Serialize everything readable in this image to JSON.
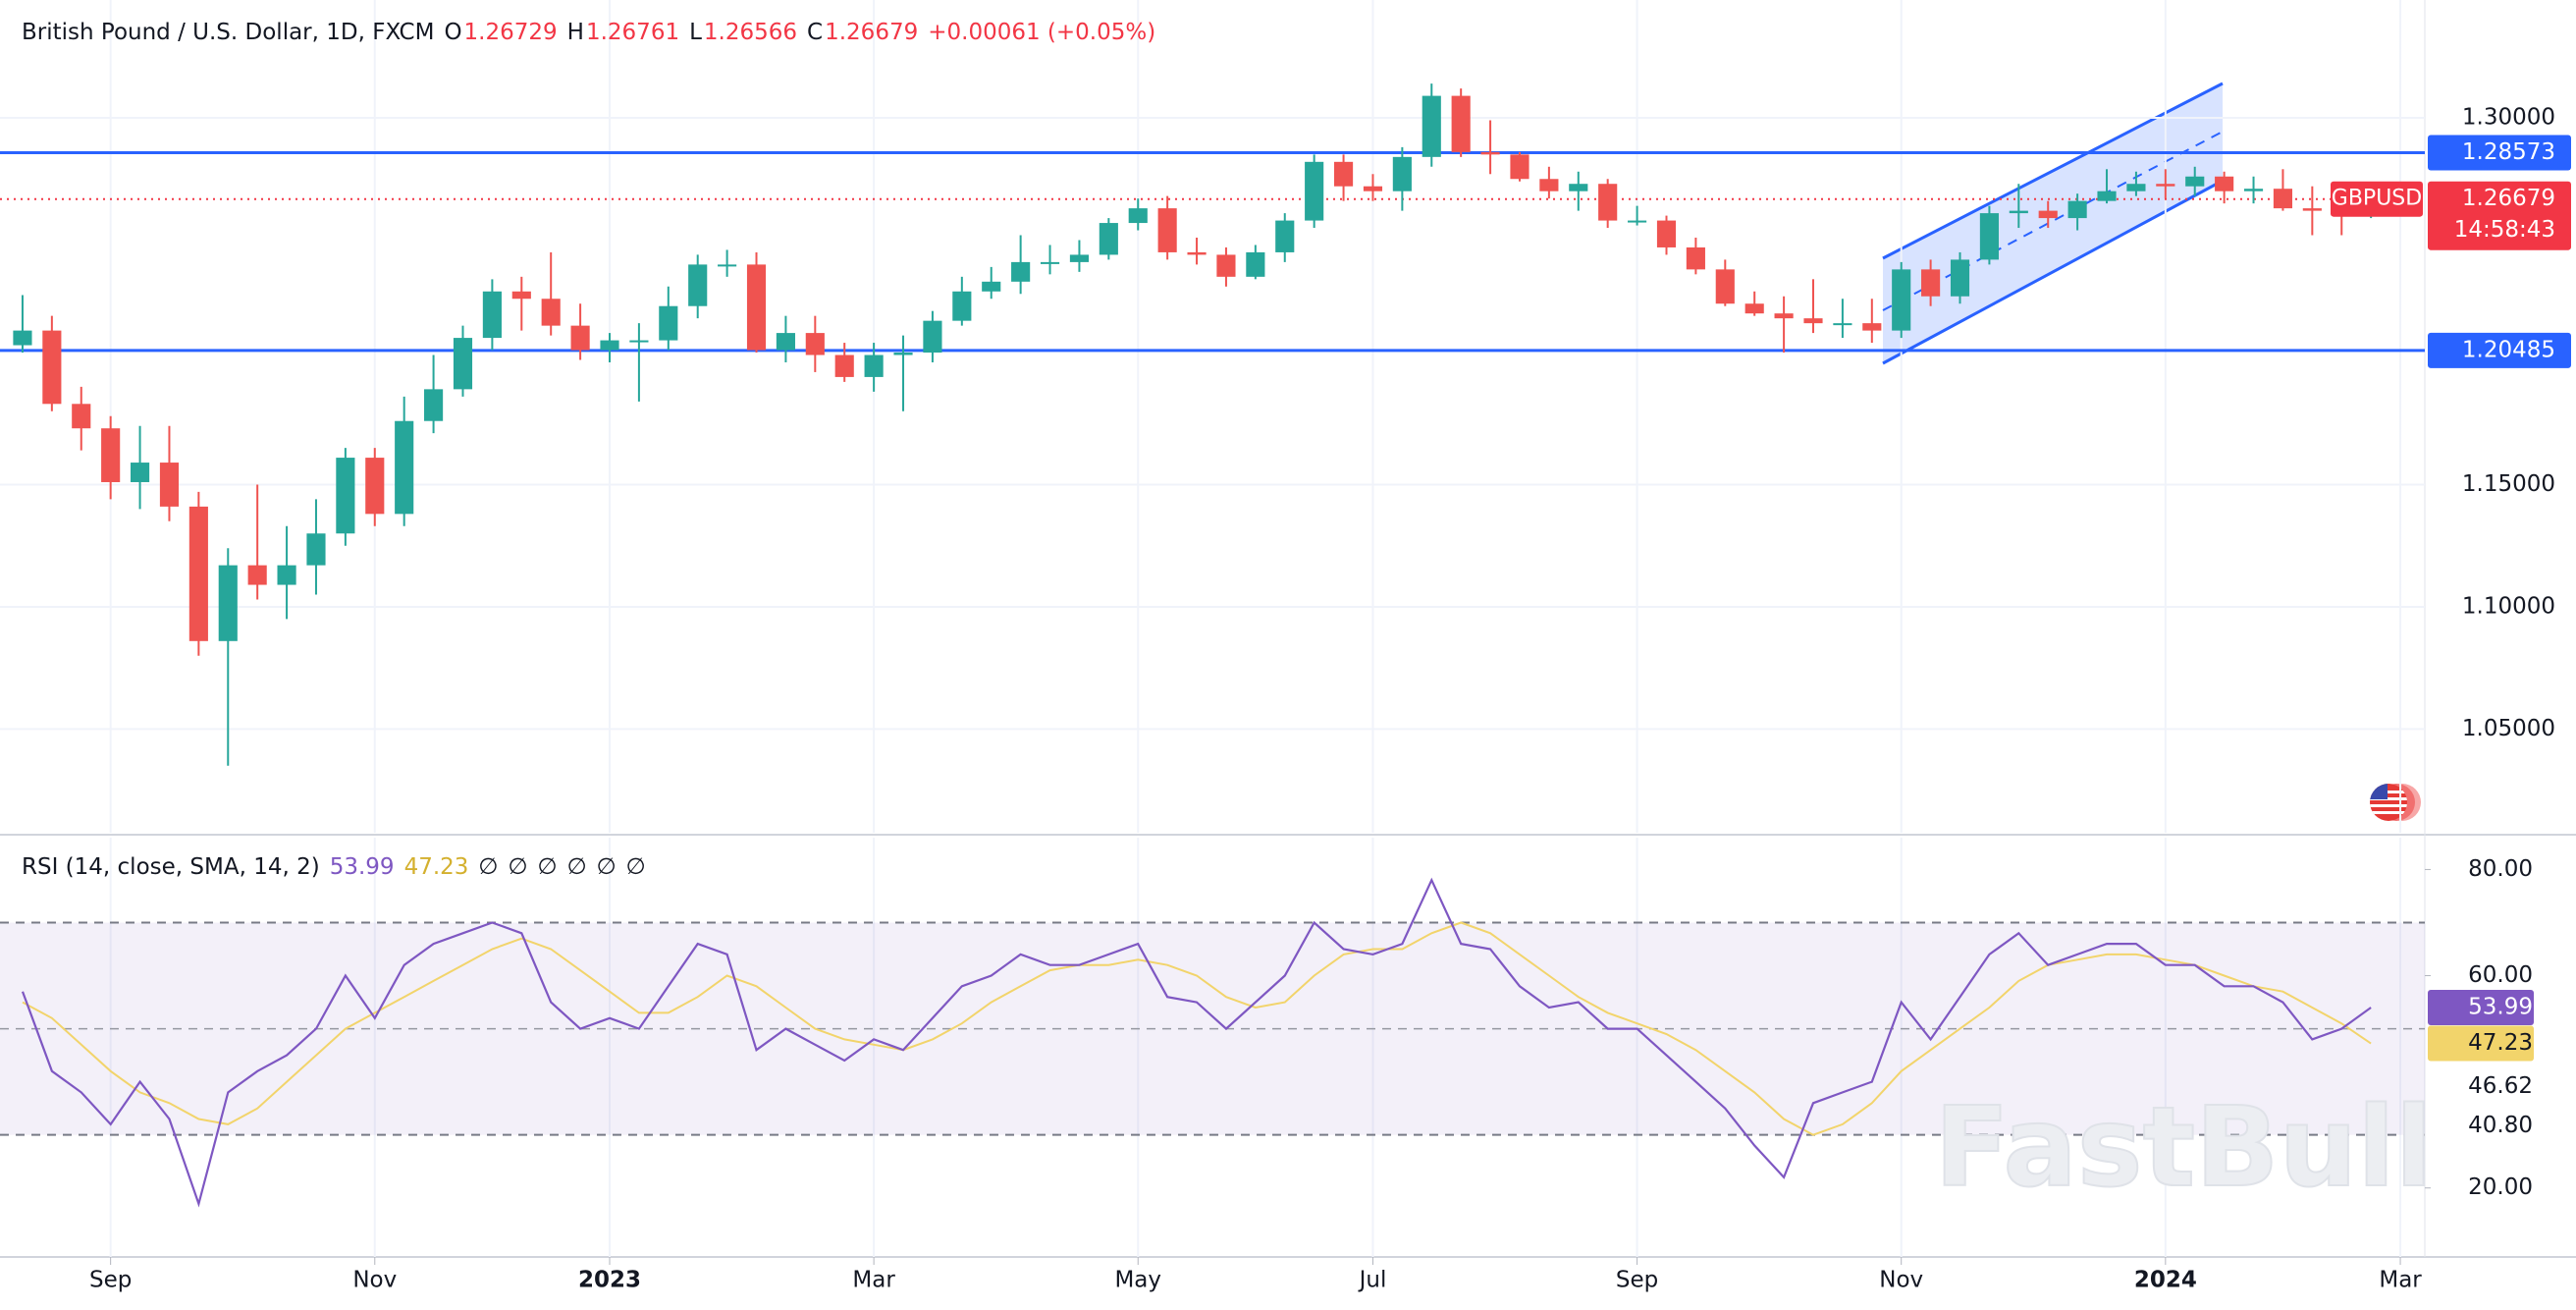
{
  "chart_data": {
    "type": "candlestick",
    "title": "British Pound / U.S. Dollar, 1D, FXCM",
    "ohlc_header": {
      "labels": [
        "O",
        "H",
        "L",
        "C"
      ],
      "open": 1.26729,
      "high": 1.26761,
      "low": 1.26566,
      "close": 1.26679,
      "change": "+0.00061 (+0.05%)"
    },
    "categories": [
      null,
      null,
      null,
      "Sep",
      null,
      null,
      null,
      null,
      null,
      null,
      null,
      null,
      "Nov",
      null,
      null,
      null,
      null,
      null,
      null,
      null,
      "2023",
      null,
      null,
      null,
      null,
      null,
      null,
      null,
      null,
      "Mar",
      null,
      null,
      null,
      null,
      null,
      null,
      null,
      null,
      "May",
      null,
      null,
      null,
      null,
      null,
      null,
      null,
      "Jul",
      null,
      null,
      null,
      null,
      null,
      null,
      null,
      null,
      "Sep",
      null,
      null,
      null,
      null,
      null,
      null,
      null,
      null,
      "Nov",
      null,
      null,
      null,
      null,
      null,
      null,
      null,
      null,
      "2024",
      null,
      null,
      null,
      null,
      null,
      null,
      null,
      "Mar"
    ],
    "open": [
      1.207,
      1.213,
      1.183,
      1.173,
      1.151,
      1.159,
      1.141,
      1.086,
      1.117,
      1.109,
      1.117,
      1.13,
      1.161,
      1.138,
      1.176,
      1.189,
      1.21,
      1.229,
      1.226,
      1.215,
      1.205,
      1.209,
      1.209,
      1.223,
      1.24,
      1.24,
      1.205,
      1.212,
      1.203,
      1.194,
      1.203,
      1.204,
      1.217,
      1.229,
      1.233,
      1.241,
      1.241,
      1.244,
      1.257,
      1.263,
      1.245,
      1.244,
      1.235,
      1.245,
      1.258,
      1.282,
      1.272,
      1.27,
      1.284,
      1.309,
      1.286,
      1.285,
      1.275,
      1.27,
      1.273,
      1.258,
      1.258,
      1.247,
      1.238,
      1.224,
      1.22,
      1.218,
      1.216,
      1.216,
      1.213,
      1.238,
      1.227,
      1.242,
      1.261,
      1.262,
      1.259,
      1.266,
      1.27,
      1.273,
      1.272,
      1.276,
      1.27,
      1.271,
      1.263,
      1.262,
      1.26,
      null
    ],
    "high": [
      1.2275,
      1.219,
      1.19,
      1.178,
      1.174,
      1.174,
      1.147,
      1.124,
      1.15,
      1.133,
      1.144,
      1.165,
      1.165,
      1.186,
      1.203,
      1.215,
      1.234,
      1.235,
      1.245,
      1.224,
      1.212,
      1.216,
      1.231,
      1.244,
      1.246,
      1.245,
      1.219,
      1.219,
      1.208,
      1.208,
      1.211,
      1.221,
      1.235,
      1.239,
      1.252,
      1.248,
      1.25,
      1.259,
      1.267,
      1.268,
      1.251,
      1.247,
      1.248,
      1.261,
      1.285,
      1.285,
      1.277,
      1.288,
      1.314,
      1.312,
      1.299,
      1.286,
      1.28,
      1.278,
      1.275,
      1.264,
      1.26,
      1.251,
      1.242,
      1.229,
      1.227,
      1.234,
      1.226,
      1.226,
      1.241,
      1.242,
      1.245,
      1.264,
      1.273,
      1.266,
      1.269,
      1.279,
      1.278,
      1.279,
      1.28,
      1.278,
      1.276,
      1.279,
      1.272,
      1.268,
      1.272,
      null
    ],
    "low": [
      1.204,
      1.18,
      1.164,
      1.144,
      1.14,
      1.135,
      1.08,
      1.035,
      1.103,
      1.095,
      1.105,
      1.125,
      1.133,
      1.133,
      1.171,
      1.186,
      1.205,
      1.213,
      1.211,
      1.201,
      1.2,
      1.184,
      1.205,
      1.218,
      1.235,
      1.204,
      1.2,
      1.196,
      1.192,
      1.188,
      1.18,
      1.2,
      1.215,
      1.226,
      1.228,
      1.236,
      1.237,
      1.242,
      1.254,
      1.242,
      1.24,
      1.231,
      1.234,
      1.241,
      1.255,
      1.266,
      1.266,
      1.262,
      1.28,
      1.284,
      1.277,
      1.274,
      1.267,
      1.262,
      1.255,
      1.256,
      1.244,
      1.236,
      1.223,
      1.219,
      1.204,
      1.212,
      1.21,
      1.208,
      1.21,
      1.223,
      1.224,
      1.24,
      1.255,
      1.255,
      1.254,
      1.265,
      1.268,
      1.267,
      1.268,
      1.265,
      1.265,
      1.262,
      1.252,
      1.252,
      1.259,
      null
    ],
    "close": [
      1.213,
      1.183,
      1.173,
      1.151,
      1.159,
      1.141,
      1.086,
      1.117,
      1.109,
      1.117,
      1.13,
      1.161,
      1.138,
      1.176,
      1.189,
      1.21,
      1.229,
      1.226,
      1.215,
      1.205,
      1.209,
      1.209,
      1.223,
      1.24,
      1.24,
      1.205,
      1.212,
      1.203,
      1.194,
      1.203,
      1.204,
      1.217,
      1.229,
      1.233,
      1.241,
      1.241,
      1.244,
      1.257,
      1.263,
      1.245,
      1.244,
      1.235,
      1.245,
      1.258,
      1.282,
      1.272,
      1.27,
      1.284,
      1.309,
      1.286,
      1.285,
      1.275,
      1.27,
      1.273,
      1.258,
      1.258,
      1.247,
      1.238,
      1.224,
      1.22,
      1.218,
      1.216,
      1.216,
      1.213,
      1.238,
      1.227,
      1.242,
      1.261,
      1.262,
      1.259,
      1.266,
      1.27,
      1.273,
      1.272,
      1.276,
      1.27,
      1.271,
      1.263,
      1.262,
      1.26,
      1.2668,
      null
    ],
    "up_color": "#26a69a",
    "down_color": "#ef5350",
    "ylim": [
      1.0076,
      1.3482
    ],
    "yticks": [
      {
        "value": 1.05,
        "label": "1.05000"
      },
      {
        "value": 1.1,
        "label": "1.10000"
      },
      {
        "value": 1.15,
        "label": "1.15000"
      },
      {
        "value": 1.3,
        "label": "1.30000"
      }
    ],
    "grid": true,
    "hlines": {
      "values": [
        1.28573,
        1.20485
      ],
      "color": "#2962ff"
    },
    "last_price": {
      "symbol": "GBPUSD",
      "value": 1.26679,
      "countdown": "14:58:43",
      "color": "#f23645"
    },
    "indicator": {
      "type": "line",
      "title": "RSI (14, close, SMA, 14, 2)",
      "series": [
        {
          "color": "#7e57c2",
          "values": [
            57,
            42,
            38,
            32,
            40,
            33,
            17,
            38,
            42,
            45,
            50,
            60,
            52,
            62,
            66,
            68,
            70,
            68,
            55,
            50,
            52,
            50,
            58,
            66,
            64,
            46,
            50,
            47,
            44,
            48,
            46,
            52,
            58,
            60,
            64,
            62,
            62,
            64,
            66,
            56,
            55,
            50,
            55,
            60,
            70,
            65,
            64,
            66,
            78,
            66,
            65,
            58,
            54,
            55,
            50,
            50,
            45,
            40,
            35,
            28,
            22,
            36,
            38,
            40,
            55,
            48,
            56,
            64,
            68,
            62,
            64,
            66,
            66,
            62,
            62,
            58,
            58,
            55,
            48,
            50,
            53.99,
            null
          ]
        },
        {
          "color": "#f2d46b",
          "values": [
            55,
            52,
            47,
            42,
            38,
            36,
            33,
            32,
            35,
            40,
            45,
            50,
            53,
            56,
            59,
            62,
            65,
            67,
            65,
            61,
            57,
            53,
            53,
            56,
            60,
            58,
            54,
            50,
            48,
            47,
            46,
            48,
            51,
            55,
            58,
            61,
            62,
            62,
            63,
            62,
            60,
            56,
            54,
            55,
            60,
            64,
            65,
            65,
            68,
            70,
            68,
            64,
            60,
            56,
            53,
            51,
            49,
            46,
            42,
            38,
            33,
            30,
            32,
            36,
            42,
            46,
            50,
            54,
            59,
            62,
            63,
            64,
            64,
            63,
            62,
            60,
            58,
            57,
            54,
            51,
            47.23,
            null
          ]
        }
      ],
      "ylim": [
        7,
        86
      ],
      "yticks": [
        {
          "value": 80,
          "label": "80.00"
        },
        {
          "value": 60,
          "label": "60.00"
        },
        {
          "value": 20,
          "label": "20.00"
        }
      ],
      "bands": [
        30,
        70
      ],
      "midline": 50,
      "extra_labels": [
        "46.62",
        "40.80"
      ],
      "placeholders": [
        "∅",
        "∅",
        "∅",
        "∅",
        "∅",
        "∅"
      ]
    },
    "watermark": "FastBull"
  }
}
